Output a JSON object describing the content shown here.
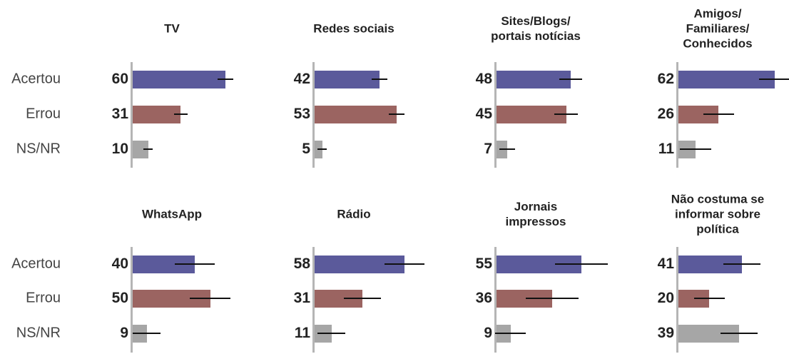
{
  "chart_data": {
    "type": "bar",
    "categories": [
      "Acertou",
      "Errou",
      "NS/NR"
    ],
    "colors": [
      "#5b5a9b",
      "#9b6461",
      "#a6a6a6"
    ],
    "xlim": [
      0,
      100
    ],
    "panels": [
      {
        "title": "TV",
        "values": [
          60,
          31,
          10
        ],
        "errors": [
          5,
          4.5,
          3
        ]
      },
      {
        "title": "Redes sociais",
        "values": [
          42,
          53,
          5
        ],
        "errors": [
          5,
          5,
          3
        ]
      },
      {
        "title": "Sites/Blogs/\nportais notícias",
        "values": [
          48,
          45,
          7
        ],
        "errors": [
          7.5,
          7.5,
          5
        ]
      },
      {
        "title": "Amigos/\nFamiliares/\nConhecidos",
        "values": [
          62,
          26,
          11
        ],
        "errors": [
          10,
          10,
          10
        ]
      },
      {
        "title": "WhatsApp",
        "values": [
          40,
          50,
          9
        ],
        "errors": [
          13,
          13,
          9
        ]
      },
      {
        "title": "Rádio",
        "values": [
          58,
          31,
          11
        ],
        "errors": [
          13,
          12,
          9
        ]
      },
      {
        "title": "Jornais\nimpressos",
        "values": [
          55,
          36,
          9
        ],
        "errors": [
          17,
          17,
          10
        ]
      },
      {
        "title": "Não costuma se\ninformar sobre\npolítica",
        "values": [
          41,
          20,
          39
        ],
        "errors": [
          12,
          10,
          12
        ]
      }
    ]
  }
}
